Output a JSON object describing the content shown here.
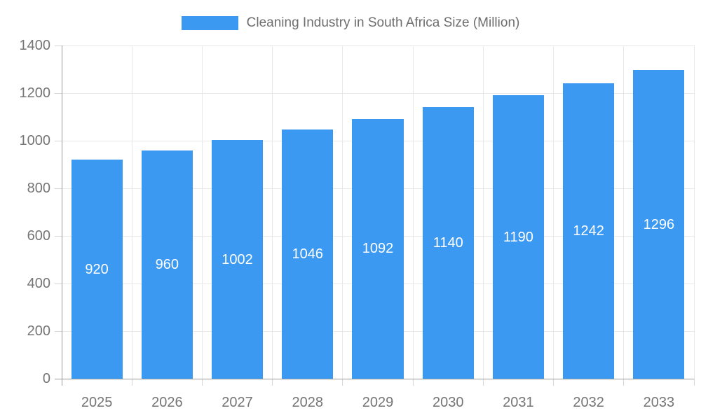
{
  "legend": {
    "label": "Cleaning Industry in South Africa Size (Million)"
  },
  "chart_data": {
    "type": "bar",
    "title": "Cleaning Industry in South Africa Size (Million)",
    "categories": [
      "2025",
      "2026",
      "2027",
      "2028",
      "2029",
      "2030",
      "2031",
      "2032",
      "2033"
    ],
    "values": [
      920,
      960,
      1002,
      1046,
      1092,
      1140,
      1190,
      1242,
      1296
    ],
    "xlabel": "",
    "ylabel": "",
    "ylim": [
      0,
      1400
    ],
    "yticks": [
      0,
      200,
      400,
      600,
      800,
      1000,
      1200,
      1400
    ],
    "grid": true,
    "legend_position": "top",
    "value_labels": "inside-center",
    "bar_color": "#3b99f1",
    "value_label_color": "#ffffff",
    "axis_text_color": "#757575",
    "legend_text_color": "#6e6e6e",
    "grid_color": "#e8e8e8",
    "tick_color": "#d6d6d6",
    "axis_line_color": "#9b9b9b"
  }
}
